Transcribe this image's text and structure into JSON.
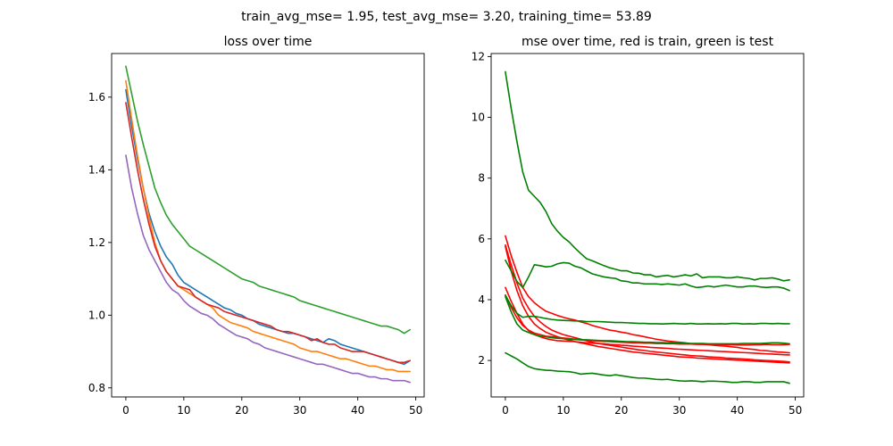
{
  "suptitle": "train_avg_mse= 1.95, test_avg_mse= 3.20, training_time= 53.89",
  "chart_data": [
    {
      "type": "line",
      "title": "loss over time",
      "xlabel": "",
      "ylabel": "",
      "xlim": [
        -2.45,
        51.45
      ],
      "ylim": [
        0.775,
        1.72
      ],
      "xticks": [
        0,
        10,
        20,
        30,
        40,
        50
      ],
      "yticks": [
        0.8,
        1.0,
        1.2,
        1.4,
        1.6
      ],
      "ytick_labels": [
        "0.8",
        "1.0",
        "1.2",
        "1.4",
        "1.6"
      ],
      "grid": false,
      "series": [
        {
          "color": "#1f77b4",
          "values": [
            1.62,
            1.52,
            1.43,
            1.35,
            1.28,
            1.23,
            1.19,
            1.16,
            1.14,
            1.11,
            1.09,
            1.08,
            1.07,
            1.06,
            1.05,
            1.04,
            1.03,
            1.02,
            1.015,
            1.005,
            1.0,
            0.99,
            0.985,
            0.975,
            0.97,
            0.965,
            0.96,
            0.955,
            0.95,
            0.95,
            0.945,
            0.94,
            0.935,
            0.93,
            0.925,
            0.935,
            0.93,
            0.92,
            0.915,
            0.91,
            0.905,
            0.9,
            0.895,
            0.89,
            0.885,
            0.88,
            0.875,
            0.87,
            0.865,
            0.875
          ]
        },
        {
          "color": "#ff7f0e",
          "values": [
            1.645,
            1.54,
            1.44,
            1.35,
            1.27,
            1.2,
            1.15,
            1.12,
            1.1,
            1.08,
            1.07,
            1.06,
            1.05,
            1.04,
            1.03,
            1.02,
            1.0,
            0.99,
            0.98,
            0.975,
            0.97,
            0.965,
            0.955,
            0.95,
            0.945,
            0.94,
            0.935,
            0.93,
            0.925,
            0.92,
            0.91,
            0.905,
            0.9,
            0.9,
            0.895,
            0.89,
            0.885,
            0.88,
            0.88,
            0.875,
            0.87,
            0.865,
            0.86,
            0.86,
            0.855,
            0.85,
            0.85,
            0.845,
            0.845,
            0.845
          ]
        },
        {
          "color": "#2ca02c",
          "values": [
            1.685,
            1.61,
            1.535,
            1.47,
            1.41,
            1.35,
            1.31,
            1.275,
            1.25,
            1.23,
            1.21,
            1.19,
            1.18,
            1.17,
            1.16,
            1.15,
            1.14,
            1.13,
            1.12,
            1.11,
            1.1,
            1.095,
            1.09,
            1.08,
            1.075,
            1.07,
            1.065,
            1.06,
            1.055,
            1.05,
            1.04,
            1.035,
            1.03,
            1.025,
            1.02,
            1.015,
            1.01,
            1.005,
            1.0,
            0.995,
            0.99,
            0.985,
            0.98,
            0.975,
            0.97,
            0.97,
            0.965,
            0.96,
            0.95,
            0.96
          ]
        },
        {
          "color": "#d62728",
          "values": [
            1.585,
            1.49,
            1.4,
            1.32,
            1.25,
            1.19,
            1.15,
            1.12,
            1.1,
            1.08,
            1.075,
            1.07,
            1.05,
            1.04,
            1.03,
            1.025,
            1.02,
            1.01,
            1.005,
            1.0,
            0.995,
            0.99,
            0.985,
            0.98,
            0.975,
            0.97,
            0.96,
            0.955,
            0.955,
            0.95,
            0.945,
            0.94,
            0.93,
            0.935,
            0.925,
            0.92,
            0.92,
            0.91,
            0.905,
            0.9,
            0.9,
            0.9,
            0.895,
            0.89,
            0.885,
            0.88,
            0.875,
            0.87,
            0.87,
            0.875
          ]
        },
        {
          "color": "#9467bd",
          "values": [
            1.44,
            1.35,
            1.28,
            1.22,
            1.18,
            1.15,
            1.12,
            1.09,
            1.07,
            1.06,
            1.04,
            1.025,
            1.015,
            1.005,
            1.0,
            0.99,
            0.975,
            0.965,
            0.955,
            0.945,
            0.94,
            0.935,
            0.925,
            0.92,
            0.91,
            0.905,
            0.9,
            0.895,
            0.89,
            0.885,
            0.88,
            0.875,
            0.87,
            0.865,
            0.865,
            0.86,
            0.855,
            0.85,
            0.845,
            0.84,
            0.84,
            0.835,
            0.83,
            0.83,
            0.825,
            0.825,
            0.82,
            0.82,
            0.82,
            0.815
          ]
        }
      ]
    },
    {
      "type": "line",
      "title": "mse over time, red is train, green is test",
      "xlabel": "",
      "ylabel": "",
      "xlim": [
        -2.45,
        51.45
      ],
      "ylim": [
        0.8,
        12.1
      ],
      "xticks": [
        0,
        10,
        20,
        30,
        40,
        50
      ],
      "yticks": [
        2,
        4,
        6,
        8,
        10,
        12
      ],
      "ytick_labels": [
        "2",
        "4",
        "6",
        "8",
        "10",
        "12"
      ],
      "grid": false,
      "series": [
        {
          "color": "#ff0000",
          "values": [
            6.1,
            5.45,
            4.9,
            4.4,
            4.1,
            3.9,
            3.75,
            3.62,
            3.55,
            3.48,
            3.42,
            3.37,
            3.33,
            3.27,
            3.22,
            3.15,
            3.1,
            3.05,
            3.0,
            2.97,
            2.93,
            2.9,
            2.85,
            2.82,
            2.78,
            2.74,
            2.7,
            2.67,
            2.64,
            2.62,
            2.6,
            2.58,
            2.55,
            2.55,
            2.53,
            2.52,
            2.5,
            2.48,
            2.47,
            2.45,
            2.43,
            2.4,
            2.38,
            2.36,
            2.33,
            2.32,
            2.3,
            2.28,
            2.27,
            2.25
          ]
        },
        {
          "color": "#ff0000",
          "values": [
            5.8,
            5.15,
            4.55,
            4.05,
            3.72,
            3.45,
            3.27,
            3.12,
            3.0,
            2.92,
            2.85,
            2.8,
            2.75,
            2.7,
            2.65,
            2.6,
            2.56,
            2.53,
            2.5,
            2.47,
            2.44,
            2.41,
            2.38,
            2.35,
            2.33,
            2.3,
            2.28,
            2.26,
            2.24,
            2.22,
            2.2,
            2.18,
            2.16,
            2.15,
            2.14,
            2.12,
            2.11,
            2.1,
            2.08,
            2.07,
            2.06,
            2.05,
            2.04,
            2.02,
            2.01,
            2.0,
            1.99,
            1.98,
            1.97,
            1.95
          ]
        },
        {
          "color": "#ff0000",
          "values": [
            5.75,
            4.95,
            4.3,
            3.8,
            3.45,
            3.2,
            3.05,
            2.93,
            2.85,
            2.78,
            2.72,
            2.67,
            2.62,
            2.58,
            2.54,
            2.5,
            2.46,
            2.43,
            2.4,
            2.37,
            2.34,
            2.31,
            2.28,
            2.26,
            2.24,
            2.22,
            2.2,
            2.18,
            2.16,
            2.14,
            2.12,
            2.11,
            2.1,
            2.08,
            2.07,
            2.06,
            2.05,
            2.04,
            2.03,
            2.02,
            2.01,
            2.0,
            1.99,
            1.98,
            1.97,
            1.96,
            1.95,
            1.94,
            1.93,
            1.92
          ]
        },
        {
          "color": "#ff0000",
          "values": [
            4.4,
            3.95,
            3.55,
            3.2,
            2.98,
            2.85,
            2.78,
            2.72,
            2.68,
            2.65,
            2.64,
            2.63,
            2.62,
            2.6,
            2.58,
            2.57,
            2.56,
            2.55,
            2.53,
            2.52,
            2.5,
            2.49,
            2.47,
            2.46,
            2.45,
            2.43,
            2.42,
            2.41,
            2.4,
            2.38,
            2.37,
            2.36,
            2.35,
            2.34,
            2.33,
            2.32,
            2.31,
            2.3,
            2.29,
            2.28,
            2.27,
            2.26,
            2.25,
            2.24,
            2.23,
            2.22,
            2.21,
            2.2,
            2.19,
            2.18
          ]
        },
        {
          "color": "#ff0000",
          "values": [
            4.15,
            3.75,
            3.4,
            3.15,
            3.0,
            2.9,
            2.85,
            2.8,
            2.78,
            2.76,
            2.74,
            2.72,
            2.7,
            2.68,
            2.66,
            2.65,
            2.64,
            2.63,
            2.62,
            2.61,
            2.6,
            2.59,
            2.58,
            2.58,
            2.57,
            2.57,
            2.56,
            2.56,
            2.55,
            2.55,
            2.54,
            2.54,
            2.54,
            2.53,
            2.53,
            2.53,
            2.52,
            2.52,
            2.52,
            2.52,
            2.51,
            2.51,
            2.51,
            2.52,
            2.52,
            2.53,
            2.52,
            2.52,
            2.52,
            2.53
          ]
        },
        {
          "color": "#008000",
          "values": [
            11.5,
            10.3,
            9.2,
            8.2,
            7.6,
            7.4,
            7.2,
            6.9,
            6.5,
            6.25,
            6.05,
            5.9,
            5.7,
            5.52,
            5.35,
            5.28,
            5.2,
            5.12,
            5.05,
            5.0,
            4.95,
            4.95,
            4.88,
            4.87,
            4.82,
            4.82,
            4.75,
            4.78,
            4.8,
            4.75,
            4.78,
            4.82,
            4.78,
            4.85,
            4.72,
            4.75,
            4.75,
            4.75,
            4.72,
            4.72,
            4.75,
            4.72,
            4.7,
            4.65,
            4.7,
            4.7,
            4.72,
            4.68,
            4.62,
            4.65
          ]
        },
        {
          "color": "#008000",
          "values": [
            5.3,
            4.95,
            4.6,
            4.4,
            4.75,
            5.15,
            5.12,
            5.08,
            5.1,
            5.18,
            5.22,
            5.2,
            5.1,
            5.05,
            4.95,
            4.85,
            4.8,
            4.75,
            4.72,
            4.7,
            4.62,
            4.6,
            4.55,
            4.55,
            4.52,
            4.52,
            4.52,
            4.5,
            4.52,
            4.5,
            4.48,
            4.52,
            4.45,
            4.4,
            4.42,
            4.45,
            4.42,
            4.45,
            4.48,
            4.45,
            4.42,
            4.42,
            4.45,
            4.45,
            4.42,
            4.4,
            4.42,
            4.42,
            4.38,
            4.3
          ]
        },
        {
          "color": "#008000",
          "values": [
            4.15,
            3.8,
            3.55,
            3.42,
            3.45,
            3.45,
            3.42,
            3.38,
            3.35,
            3.33,
            3.32,
            3.31,
            3.3,
            3.3,
            3.28,
            3.28,
            3.28,
            3.27,
            3.26,
            3.25,
            3.25,
            3.24,
            3.23,
            3.22,
            3.22,
            3.21,
            3.21,
            3.2,
            3.21,
            3.22,
            3.21,
            3.2,
            3.22,
            3.2,
            3.2,
            3.21,
            3.2,
            3.21,
            3.2,
            3.22,
            3.22,
            3.2,
            3.21,
            3.2,
            3.22,
            3.22,
            3.21,
            3.22,
            3.21,
            3.21
          ]
        },
        {
          "color": "#008000",
          "values": [
            4.1,
            3.6,
            3.2,
            3.0,
            2.92,
            2.85,
            2.8,
            2.78,
            2.75,
            2.73,
            2.72,
            2.7,
            2.69,
            2.68,
            2.68,
            2.67,
            2.66,
            2.65,
            2.65,
            2.64,
            2.63,
            2.62,
            2.62,
            2.61,
            2.6,
            2.6,
            2.59,
            2.59,
            2.58,
            2.58,
            2.57,
            2.57,
            2.56,
            2.56,
            2.56,
            2.55,
            2.55,
            2.55,
            2.55,
            2.55,
            2.55,
            2.56,
            2.56,
            2.56,
            2.56,
            2.57,
            2.58,
            2.58,
            2.57,
            2.55
          ]
        },
        {
          "color": "#008000",
          "values": [
            2.25,
            2.15,
            2.05,
            1.92,
            1.8,
            1.73,
            1.7,
            1.68,
            1.67,
            1.65,
            1.64,
            1.63,
            1.6,
            1.55,
            1.57,
            1.58,
            1.55,
            1.52,
            1.5,
            1.53,
            1.5,
            1.47,
            1.44,
            1.42,
            1.42,
            1.4,
            1.38,
            1.37,
            1.38,
            1.35,
            1.33,
            1.32,
            1.33,
            1.32,
            1.3,
            1.32,
            1.32,
            1.31,
            1.3,
            1.28,
            1.28,
            1.3,
            1.3,
            1.28,
            1.28,
            1.3,
            1.3,
            1.3,
            1.3,
            1.25
          ]
        }
      ]
    }
  ]
}
